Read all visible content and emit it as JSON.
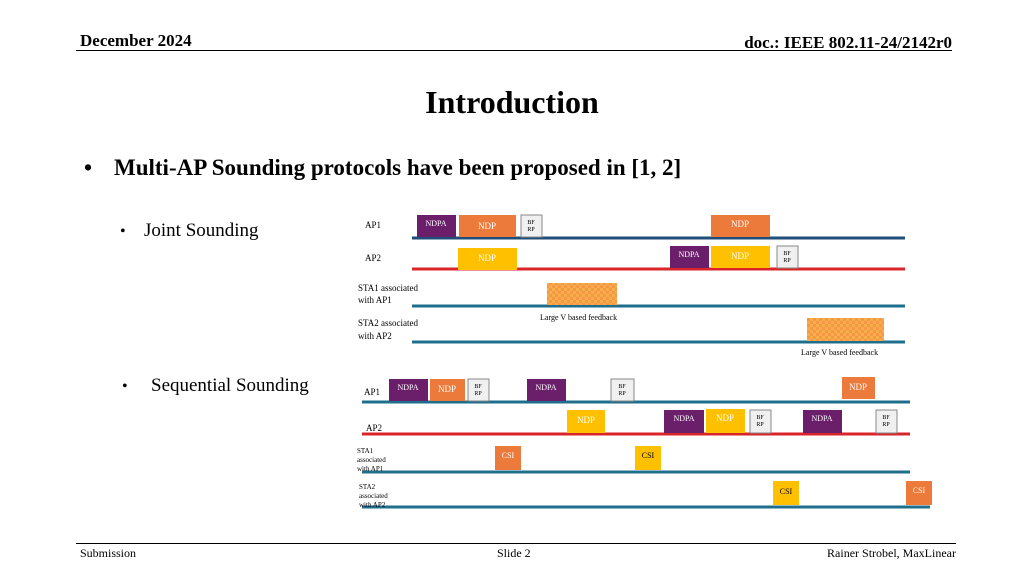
{
  "header": {
    "date": "December 2024",
    "doc_id": "doc.: IEEE 802.11-24/2142r0"
  },
  "slide": {
    "title": "Introduction",
    "bullet": "Multi-AP Sounding protocols have been proposed in [1, 2]",
    "sub_bullets": [
      "Joint Sounding",
      "Sequential Sounding"
    ]
  },
  "footer": {
    "left": "Submission",
    "center": "Slide 2",
    "right": "Rainer Strobel, MaxLinear"
  },
  "colors": {
    "ap1_line": "#1f4e79",
    "ap2_line": "#d9252a",
    "sta_line": "#1f6e8c",
    "ndpa": "#6b1f6b",
    "ndp_orange": "#ec7a3a",
    "ndp_yellow": "#ffc000",
    "bfrp_fill": "#f0f0f0",
    "feedback": "#f79646"
  },
  "joint": {
    "rows": {
      "ap1": "AP1",
      "ap2": "AP2",
      "sta1_line1": "STA1 associated",
      "sta1_line2": "with AP1",
      "sta2_line1": "STA2 associated",
      "sta2_line2": "with AP2"
    },
    "ndpa": "NDPA",
    "ndp": "NDP",
    "bf": "BF",
    "rp": "RP",
    "feedback": "Large V based feedback"
  },
  "sequential": {
    "rows": {
      "ap1": "AP1",
      "ap2": "AP2",
      "sta1_line1": "STA1",
      "sta1_line2": "associated",
      "sta1_line3": "with AP1",
      "sta2_line1": "STA2",
      "sta2_line2": "associated",
      "sta2_line3": "with AP2"
    },
    "ndpa": "NDPA",
    "ndp": "NDP",
    "bf": "BF",
    "rp": "RP",
    "csi": "CSI"
  }
}
